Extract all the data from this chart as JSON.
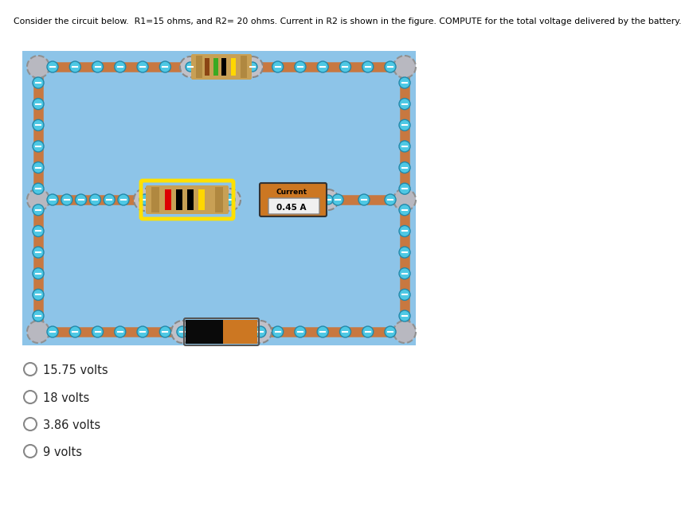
{
  "title_text": "Consider the circuit below.  R1=15 ohms, and R2= 20 ohms. Current in R2 is shown in the figure. COMPUTE for the total voltage delivered by the battery.",
  "circuit_bg_color": "#8dc4e8",
  "wire_color": "#c87840",
  "node_color": "#4ec8e4",
  "node_edge_color": "#2288aa",
  "figure_bg_color": "#ffffff",
  "choices": [
    "15.75 volts",
    "18 volts",
    "3.86 volts",
    "9 volts"
  ],
  "current_label": "Current",
  "current_value": "0.45 A",
  "junction_fc": "#b8b8b8",
  "junction_ec": "#808080"
}
